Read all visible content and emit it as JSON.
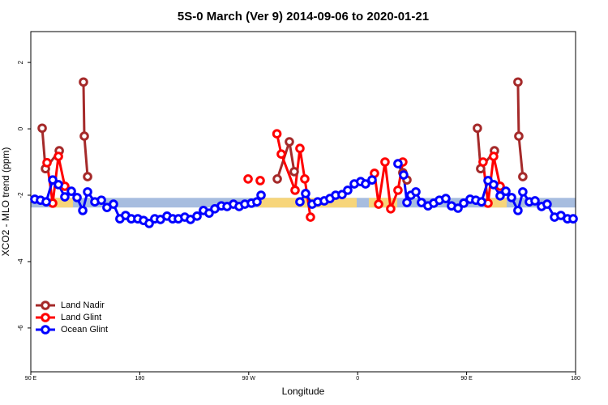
{
  "chart_data": {
    "type": "line",
    "title": "5S-0 March (Ver 9)   2014-09-06 to 2020-01-21",
    "x_label": "Longitude",
    "y_label": "XCO2 - MLO trend (ppm)",
    "xlim": [
      90,
      540
    ],
    "xticks": [
      {
        "value": 90,
        "label": "90 E"
      },
      {
        "value": 180,
        "label": "180"
      },
      {
        "value": 270,
        "label": "90 W"
      },
      {
        "value": 360,
        "label": "0"
      },
      {
        "value": 450,
        "label": "90 E"
      },
      {
        "value": 540,
        "label": "180"
      }
    ],
    "ylim": [
      -7.32,
      2.93
    ],
    "yticks": [
      2,
      0,
      -2,
      -4,
      -6
    ],
    "legend": "bottom-left",
    "reference_band": {
      "ylim": [
        -2.37,
        -2.08
      ],
      "color": "#a7bddf",
      "highlight_color": "#f7d57a",
      "highlight_x": [
        [
          108,
          124.8
        ],
        [
          277.5,
          359.2
        ],
        [
          369.2,
          392.7
        ],
        [
          466.3,
          483.1
        ]
      ]
    },
    "series": [
      {
        "name": "Land Nadir",
        "color": "#a52a2a",
        "x": [
          99.4,
          102.1,
          113.5,
          null,
          133.5,
          134.2,
          136.9,
          null,
          293.6,
          303.6,
          307.6,
          null,
          397.3,
          400.7,
          null,
          458.9,
          461.6,
          473.0,
          null,
          492.4,
          493.1,
          496.4
        ],
        "values": [
          0.02,
          -1.2,
          -0.66,
          null,
          1.41,
          -0.22,
          -1.44,
          null,
          -1.51,
          -0.39,
          -1.29,
          null,
          -1.32,
          -1.54,
          null,
          0.02,
          -1.2,
          -0.66,
          null,
          1.41,
          -0.22,
          -1.44
        ]
      },
      {
        "name": "Land Glint",
        "color": "#ff0000",
        "x": [
          103.4,
          108.1,
          112.8,
          118.1,
          null,
          269.5,
          null,
          279.5,
          null,
          293.3,
          296.9,
          308.3,
          312.3,
          316.3,
          321.0,
          null,
          373.9,
          377.3,
          382.6,
          387.3,
          393.3,
          397.3,
          null,
          463.6,
          467.7,
          472.3,
          477.7
        ],
        "values": [
          -1.02,
          -2.24,
          -0.83,
          -1.73,
          null,
          -1.51,
          null,
          -1.56,
          null,
          -0.15,
          -0.76,
          -1.85,
          -0.59,
          -1.51,
          -2.66,
          null,
          -1.34,
          -2.27,
          -1.0,
          -2.41,
          -1.85,
          -1.0,
          null,
          -1.0,
          -2.24,
          -0.83,
          -1.73
        ]
      },
      {
        "name": "Ocean Glint",
        "color": "#0000ff",
        "x": [
          93.3,
          98.0,
          102.7,
          108.1,
          112.8,
          118.1,
          123.5,
          128.2,
          132.9,
          136.9,
          142.9,
          148.3,
          152.9,
          158.3,
          163.6,
          168.3,
          173.0,
          178.4,
          183.1,
          187.8,
          192.4,
          197.1,
          202.5,
          207.2,
          211.9,
          217.2,
          221.9,
          227.3,
          232.6,
          237.3,
          242.0,
          247.4,
          252.1,
          257.4,
          262.1,
          266.8,
          272.2,
          276.8,
          280.2,
          null,
          312.3,
          317.0,
          322.4,
          327.0,
          332.4,
          337.1,
          341.8,
          347.1,
          351.8,
          357.2,
          362.5,
          366.5,
          371.9,
          null,
          393.3,
          398.0,
          400.7,
          404.0,
          408.1,
          412.7,
          418.1,
          422.8,
          427.5,
          432.8,
          437.5,
          442.9,
          447.6,
          452.9,
          457.6,
          462.3,
          467.7,
          472.3,
          477.7,
          482.4,
          487.1,
          492.4,
          496.4,
          501.8,
          506.5,
          511.9,
          516.5,
          522.6,
          527.9,
          533.3,
          538.0
        ],
        "values": [
          -2.12,
          -2.15,
          -2.2,
          -1.54,
          -1.68,
          -2.05,
          -1.88,
          -2.07,
          -2.46,
          -1.9,
          -2.2,
          -2.15,
          -2.37,
          -2.27,
          -2.71,
          -2.61,
          -2.71,
          -2.71,
          -2.76,
          -2.85,
          -2.71,
          -2.73,
          -2.63,
          -2.71,
          -2.71,
          -2.66,
          -2.73,
          -2.63,
          -2.46,
          -2.54,
          -2.41,
          -2.32,
          -2.34,
          -2.27,
          -2.34,
          -2.27,
          -2.24,
          -2.2,
          -2.0,
          null,
          -2.2,
          -1.95,
          -2.27,
          -2.2,
          -2.17,
          -2.1,
          -2.0,
          -1.98,
          -1.85,
          -1.66,
          -1.59,
          -1.66,
          -1.54,
          null,
          -1.05,
          -1.39,
          -2.22,
          -2.0,
          -1.9,
          -2.22,
          -2.32,
          -2.24,
          -2.15,
          -2.1,
          -2.32,
          -2.39,
          -2.24,
          -2.12,
          -2.15,
          -2.2,
          -1.56,
          -1.68,
          -2.02,
          -1.88,
          -2.07,
          -2.46,
          -1.9,
          -2.2,
          -2.17,
          -2.34,
          -2.27,
          -2.66,
          -2.61,
          -2.71,
          -2.71
        ]
      }
    ]
  }
}
